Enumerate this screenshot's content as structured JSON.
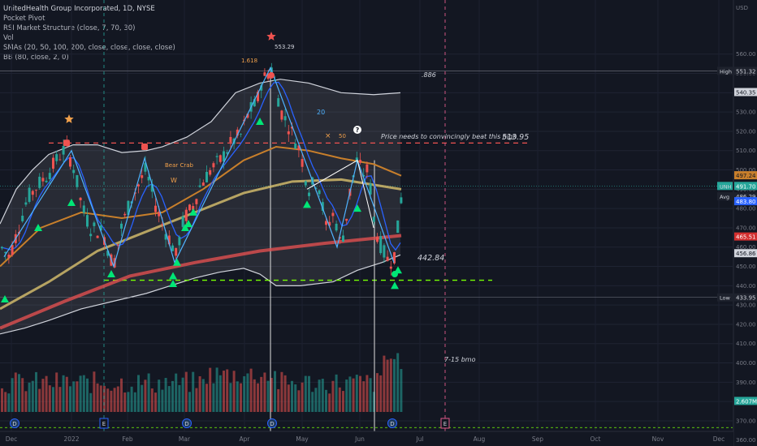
{
  "chart_data": {
    "type": "candlestick",
    "header": {
      "symbol_line": "UnitedHealth Group Incorporated, 1D, NYSE",
      "indicators": [
        "Pocket Pivot",
        "RSI Market Structure (close, 7, 70, 30)",
        "Vol",
        "SMAs (20, 50, 100, 200, close, close, close, close)",
        "BB (80, close, 2, 0)"
      ]
    },
    "currency": "USD",
    "y_ticks": [
      560,
      550,
      540,
      530,
      520,
      510,
      500,
      490,
      480,
      470,
      460,
      450,
      440,
      430,
      420,
      410,
      400,
      390,
      380,
      370,
      360
    ],
    "ylim": [
      357,
      565
    ],
    "x_ticks": [
      "Dec",
      "2022",
      "Feb",
      "Mar",
      "Apr",
      "May",
      "Jun",
      "Jul",
      "Aug",
      "Sep",
      "Oct",
      "Nov",
      "Dec"
    ],
    "price_tags": [
      {
        "label": "High",
        "value": "551.32",
        "price": 551.32,
        "bg": "#1e222d",
        "fg": "#d1d4dc",
        "line": true
      },
      {
        "label": "",
        "value": "540.35",
        "price": 540.35,
        "bg": "#d1d4dc",
        "fg": "#131722",
        "line": false
      },
      {
        "label": "",
        "value": "497.24",
        "price": 497.24,
        "bg": "#c87f2b",
        "fg": "#131722",
        "line": false
      },
      {
        "label": "UNH",
        "value": "491.70",
        "price": 491.7,
        "bg": "#26a69a",
        "fg": "#ffffff",
        "line": true
      },
      {
        "label": "Avg",
        "value": "486.29",
        "price": 486.29,
        "bg": "#1e222d",
        "fg": "#d1d4dc",
        "line": false
      },
      {
        "label": "",
        "value": "483.80",
        "price": 483.8,
        "bg": "#2962ff",
        "fg": "#ffffff",
        "line": false
      },
      {
        "label": "",
        "value": "465.51",
        "price": 465.51,
        "bg": "#d32f2f",
        "fg": "#ffffff",
        "line": false
      },
      {
        "label": "",
        "value": "456.86",
        "price": 456.86,
        "bg": "#d1d4dc",
        "fg": "#131722",
        "line": false
      },
      {
        "label": "Low",
        "value": "433.95",
        "price": 433.95,
        "bg": "#1e222d",
        "fg": "#d1d4dc",
        "line": true
      },
      {
        "label": "",
        "value": "2.607M",
        "price": 380.3,
        "bg": "#26a69a",
        "fg": "#ffffff",
        "line": false
      }
    ],
    "annotations": [
      {
        "text": "553.29",
        "kind": "peak-label"
      },
      {
        "text": "1.618",
        "kind": "fib"
      },
      {
        "text": ".886",
        "kind": "fib"
      },
      {
        "text": "513.95",
        "kind": "level"
      },
      {
        "text": "442.84",
        "kind": "level"
      },
      {
        "text": "Price needs to convincingly beat this high",
        "kind": "note"
      },
      {
        "text": "Bear Crab",
        "kind": "pattern"
      },
      {
        "text": "W",
        "kind": "pattern"
      },
      {
        "text": "20",
        "kind": "sma-label"
      },
      {
        "text": "50",
        "kind": "sma-label"
      },
      {
        "text": "?",
        "kind": "marker"
      },
      {
        "text": "7-15 bmo",
        "kind": "note"
      }
    ],
    "event_markers": [
      "D",
      "E",
      "D",
      "D",
      "D",
      "E"
    ],
    "levels": {
      "resistance": 513.95,
      "support": 442.84,
      "high": 551.32,
      "low": 433.95
    },
    "colors": {
      "up": "#26a69a",
      "down": "#ef5350",
      "sma20": "#2962ff",
      "sma50": "#c87f2b",
      "sma100": "#d9c26e",
      "sma200": "#e05050",
      "bb": "#d1d4dc",
      "resistance": "#ef5350",
      "support": "#76ff03",
      "signal_up": "#00e676",
      "signal_down": "#ef5350"
    }
  }
}
